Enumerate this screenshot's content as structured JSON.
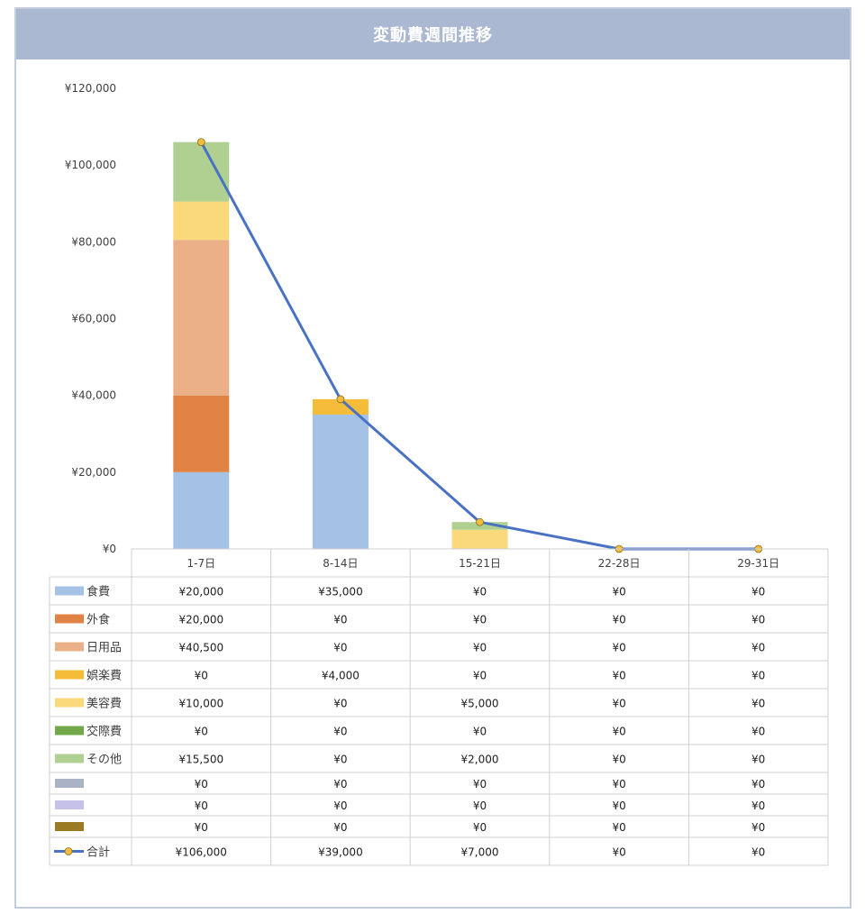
{
  "chart_data": {
    "type": "bar",
    "title": "変動費週間推移",
    "categories": [
      "1-7日",
      "8-14日",
      "15-21日",
      "22-28日",
      "29-31日"
    ],
    "ylim": [
      0,
      120000
    ],
    "yticks": [
      "¥0",
      "¥20,000",
      "¥40,000",
      "¥60,000",
      "¥80,000",
      "¥100,000",
      "¥120,000"
    ],
    "grid": false,
    "legend": "table-below",
    "stacked": true,
    "series": [
      {
        "name": "食費",
        "color": "#a4c2e6",
        "values": [
          20000,
          35000,
          0,
          0,
          0
        ],
        "labels": [
          "¥20,000",
          "¥35,000",
          "¥0",
          "¥0",
          "¥0"
        ]
      },
      {
        "name": "外食",
        "color": "#e08345",
        "values": [
          20000,
          0,
          0,
          0,
          0
        ],
        "labels": [
          "¥20,000",
          "¥0",
          "¥0",
          "¥0",
          "¥0"
        ]
      },
      {
        "name": "日用品",
        "color": "#ebb088",
        "values": [
          40500,
          0,
          0,
          0,
          0
        ],
        "labels": [
          "¥40,500",
          "¥0",
          "¥0",
          "¥0",
          "¥0"
        ]
      },
      {
        "name": "娯楽費",
        "color": "#f5bc3a",
        "values": [
          0,
          4000,
          0,
          0,
          0
        ],
        "labels": [
          "¥0",
          "¥4,000",
          "¥0",
          "¥0",
          "¥0"
        ]
      },
      {
        "name": "美容費",
        "color": "#fad97a",
        "values": [
          10000,
          0,
          5000,
          0,
          0
        ],
        "labels": [
          "¥10,000",
          "¥0",
          "¥5,000",
          "¥0",
          "¥0"
        ]
      },
      {
        "name": "交際費",
        "color": "#71a84a",
        "values": [
          0,
          0,
          0,
          0,
          0
        ],
        "labels": [
          "¥0",
          "¥0",
          "¥0",
          "¥0",
          "¥0"
        ]
      },
      {
        "name": "その他",
        "color": "#b0d092",
        "values": [
          15500,
          0,
          2000,
          0,
          0
        ],
        "labels": [
          "¥15,500",
          "¥0",
          "¥2,000",
          "¥0",
          "¥0"
        ]
      },
      {
        "name": "",
        "color": "#aab3c6",
        "values": [
          0,
          0,
          0,
          0,
          0
        ],
        "labels": [
          "¥0",
          "¥0",
          "¥0",
          "¥0",
          "¥0"
        ]
      },
      {
        "name": "",
        "color": "#c5c1e8",
        "values": [
          0,
          0,
          0,
          0,
          0
        ],
        "labels": [
          "¥0",
          "¥0",
          "¥0",
          "¥0",
          "¥0"
        ]
      },
      {
        "name": "",
        "color": "#9a7a22",
        "values": [
          0,
          0,
          0,
          0,
          0
        ],
        "labels": [
          "¥0",
          "¥0",
          "¥0",
          "¥0",
          "¥0"
        ]
      }
    ],
    "total": {
      "name": "合計",
      "type": "line",
      "color": "#4a72c4",
      "marker_color": "#f2bd3d",
      "values": [
        106000,
        39000,
        7000,
        0,
        0
      ],
      "labels": [
        "¥106,000",
        "¥39,000",
        "¥7,000",
        "¥0",
        "¥0"
      ]
    }
  }
}
